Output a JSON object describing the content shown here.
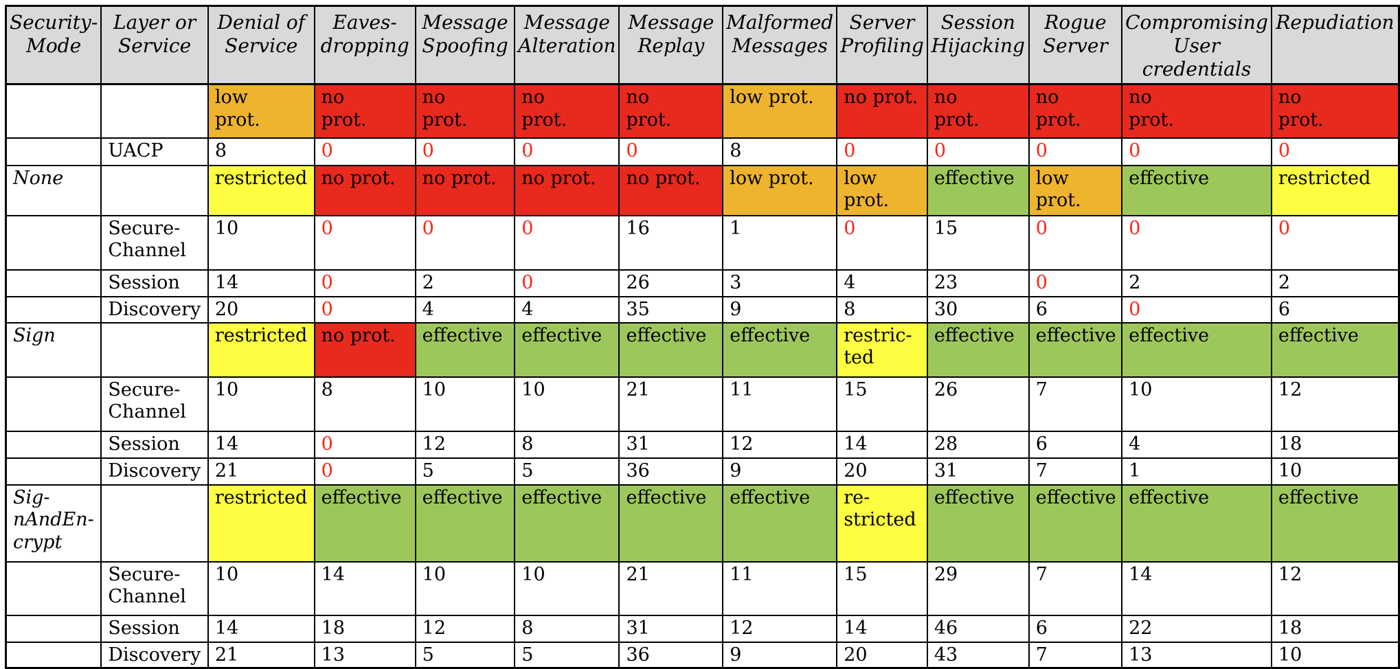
{
  "palette": {
    "header_bg": "#d9d9d9",
    "red_bg": "#e8291e",
    "orange_bg": "#eeb42e",
    "yellow_bg": "#fdfe41",
    "green_bg": "#9ec75b",
    "red_text": "#fe2417",
    "grid_line": "#000000"
  },
  "columns": [
    "Security-\nMode",
    "Layer or\nService",
    "Denial of\nService",
    "Eaves-\ndropping",
    "Message\nSpoofing",
    "Message\nAlteration",
    "Message\nReplay",
    "Malformed\nMessages",
    "Server\nProfiling",
    "Session\nHijacking",
    "Rogue\nServer",
    "Compromising\nUser\ncredentials",
    "Repudiation"
  ],
  "rows": [
    {
      "mode": "",
      "layer": "",
      "cells": [
        {
          "text": "low\nprot.",
          "bg": "orange"
        },
        {
          "text": "no\nprot.",
          "bg": "red"
        },
        {
          "text": "no\nprot.",
          "bg": "red"
        },
        {
          "text": "no\nprot.",
          "bg": "red"
        },
        {
          "text": "no\nprot.",
          "bg": "red"
        },
        {
          "text": "low prot.",
          "bg": "orange"
        },
        {
          "text": "no prot.",
          "bg": "red"
        },
        {
          "text": "no\nprot.",
          "bg": "red"
        },
        {
          "text": "no\nprot.",
          "bg": "red"
        },
        {
          "text": "no\nprot.",
          "bg": "red"
        },
        {
          "text": "no\nprot.",
          "bg": "red"
        }
      ]
    },
    {
      "mode": "",
      "layer": "UACP",
      "cells": [
        {
          "text": "8"
        },
        {
          "text": "0",
          "red": true
        },
        {
          "text": "0",
          "red": true
        },
        {
          "text": "0",
          "red": true
        },
        {
          "text": "0",
          "red": true
        },
        {
          "text": "8"
        },
        {
          "text": "0",
          "red": true
        },
        {
          "text": "0",
          "red": true
        },
        {
          "text": "0",
          "red": true
        },
        {
          "text": "0",
          "red": true
        },
        {
          "text": "0",
          "red": true
        }
      ]
    },
    {
      "mode": "None",
      "layer": "",
      "cells": [
        {
          "text": "restricted",
          "bg": "yellow"
        },
        {
          "text": "no prot.",
          "bg": "red"
        },
        {
          "text": "no prot.",
          "bg": "red"
        },
        {
          "text": "no prot.",
          "bg": "red"
        },
        {
          "text": "no prot.",
          "bg": "red"
        },
        {
          "text": "low prot.",
          "bg": "orange"
        },
        {
          "text": "low\nprot.",
          "bg": "orange"
        },
        {
          "text": "effective",
          "bg": "green"
        },
        {
          "text": "low prot.",
          "bg": "orange"
        },
        {
          "text": "effective",
          "bg": "green"
        },
        {
          "text": "restricted",
          "bg": "yellow"
        }
      ]
    },
    {
      "mode": "",
      "layer": "Secure-\nChannel",
      "cells": [
        {
          "text": "10"
        },
        {
          "text": "0",
          "red": true
        },
        {
          "text": "0",
          "red": true
        },
        {
          "text": "0",
          "red": true
        },
        {
          "text": "16"
        },
        {
          "text": "1"
        },
        {
          "text": "0",
          "red": true
        },
        {
          "text": "15"
        },
        {
          "text": "0",
          "red": true
        },
        {
          "text": "0",
          "red": true
        },
        {
          "text": "0",
          "red": true
        }
      ]
    },
    {
      "mode": "",
      "layer": "Session",
      "cells": [
        {
          "text": "14"
        },
        {
          "text": "0",
          "red": true
        },
        {
          "text": "2"
        },
        {
          "text": "0",
          "red": true
        },
        {
          "text": "26"
        },
        {
          "text": "3"
        },
        {
          "text": "4"
        },
        {
          "text": "23"
        },
        {
          "text": "0",
          "red": true
        },
        {
          "text": "2"
        },
        {
          "text": "2"
        }
      ]
    },
    {
      "mode": "",
      "layer": "Discovery",
      "cells": [
        {
          "text": "20"
        },
        {
          "text": "0",
          "red": true
        },
        {
          "text": "4"
        },
        {
          "text": "4"
        },
        {
          "text": "35"
        },
        {
          "text": "9"
        },
        {
          "text": "8"
        },
        {
          "text": "30"
        },
        {
          "text": "6"
        },
        {
          "text": "0",
          "red": true
        },
        {
          "text": "6"
        }
      ]
    },
    {
      "mode": "Sign",
      "layer": "",
      "cells": [
        {
          "text": "restricted",
          "bg": "yellow"
        },
        {
          "text": "no prot.",
          "bg": "red"
        },
        {
          "text": "effective",
          "bg": "green"
        },
        {
          "text": "effective",
          "bg": "green"
        },
        {
          "text": "effective",
          "bg": "green"
        },
        {
          "text": "effective",
          "bg": "green"
        },
        {
          "text": "restric-\nted",
          "bg": "yellow"
        },
        {
          "text": "effective",
          "bg": "green"
        },
        {
          "text": "effective",
          "bg": "green"
        },
        {
          "text": "effective",
          "bg": "green"
        },
        {
          "text": "effective",
          "bg": "green"
        }
      ]
    },
    {
      "mode": "",
      "layer": "Secure-\nChannel",
      "cells": [
        {
          "text": "10"
        },
        {
          "text": "8"
        },
        {
          "text": "10"
        },
        {
          "text": "10"
        },
        {
          "text": "21"
        },
        {
          "text": "11"
        },
        {
          "text": "15"
        },
        {
          "text": "26"
        },
        {
          "text": "7"
        },
        {
          "text": "10"
        },
        {
          "text": "12"
        }
      ]
    },
    {
      "mode": "",
      "layer": "Session",
      "cells": [
        {
          "text": "14"
        },
        {
          "text": "0",
          "red": true
        },
        {
          "text": "12"
        },
        {
          "text": "8"
        },
        {
          "text": "31"
        },
        {
          "text": "12"
        },
        {
          "text": "14"
        },
        {
          "text": "28"
        },
        {
          "text": "6"
        },
        {
          "text": "4"
        },
        {
          "text": "18"
        }
      ]
    },
    {
      "mode": "",
      "layer": "Discovery",
      "cells": [
        {
          "text": "21"
        },
        {
          "text": "0",
          "red": true
        },
        {
          "text": "5"
        },
        {
          "text": "5"
        },
        {
          "text": "36"
        },
        {
          "text": "9"
        },
        {
          "text": "20"
        },
        {
          "text": "31"
        },
        {
          "text": "7"
        },
        {
          "text": "1"
        },
        {
          "text": "10"
        }
      ]
    },
    {
      "mode": "Sig-\nnAndEn-\ncrypt",
      "layer": "",
      "cells": [
        {
          "text": "restricted",
          "bg": "yellow"
        },
        {
          "text": "effective",
          "bg": "green"
        },
        {
          "text": "effective",
          "bg": "green"
        },
        {
          "text": "effective",
          "bg": "green"
        },
        {
          "text": "effective",
          "bg": "green"
        },
        {
          "text": "effective",
          "bg": "green"
        },
        {
          "text": "re-\nstricted",
          "bg": "yellow"
        },
        {
          "text": "effective",
          "bg": "green"
        },
        {
          "text": "effective",
          "bg": "green"
        },
        {
          "text": "effective",
          "bg": "green"
        },
        {
          "text": "effective",
          "bg": "green"
        }
      ]
    },
    {
      "mode": "",
      "layer": "Secure-\nChannel",
      "cells": [
        {
          "text": "10"
        },
        {
          "text": "14"
        },
        {
          "text": "10"
        },
        {
          "text": "10"
        },
        {
          "text": "21"
        },
        {
          "text": "11"
        },
        {
          "text": "15"
        },
        {
          "text": "29"
        },
        {
          "text": "7"
        },
        {
          "text": "14"
        },
        {
          "text": "12"
        }
      ]
    },
    {
      "mode": "",
      "layer": "Session",
      "cells": [
        {
          "text": "14"
        },
        {
          "text": "18"
        },
        {
          "text": "12"
        },
        {
          "text": "8"
        },
        {
          "text": "31"
        },
        {
          "text": "12"
        },
        {
          "text": "14"
        },
        {
          "text": "46"
        },
        {
          "text": "6"
        },
        {
          "text": "22"
        },
        {
          "text": "18"
        }
      ]
    },
    {
      "mode": "",
      "layer": "Discovery",
      "cells": [
        {
          "text": "21"
        },
        {
          "text": "13"
        },
        {
          "text": "5"
        },
        {
          "text": "5"
        },
        {
          "text": "36"
        },
        {
          "text": "9"
        },
        {
          "text": "20"
        },
        {
          "text": "43"
        },
        {
          "text": "7"
        },
        {
          "text": "13"
        },
        {
          "text": "10"
        }
      ]
    }
  ]
}
